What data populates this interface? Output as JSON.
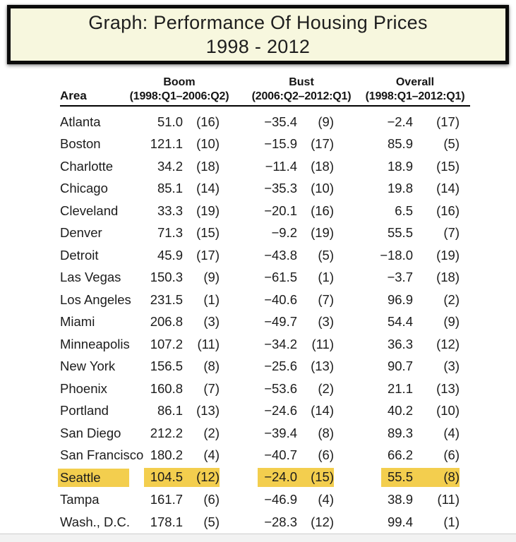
{
  "title": {
    "line1": "Graph: Performance Of Housing Prices",
    "line2": "1998 - 2012"
  },
  "table": {
    "area_header": "Area",
    "groups": [
      {
        "label": "Boom",
        "range": "(1998:Q1–2006:Q2)"
      },
      {
        "label": "Bust",
        "range": "(2006:Q2–2012:Q1)"
      },
      {
        "label": "Overall",
        "range": "(1998:Q1–2012:Q1)"
      }
    ],
    "rows": [
      {
        "area": "Atlanta",
        "boom": "51.0",
        "boom_rank": "(16)",
        "bust": "−35.4",
        "bust_rank": "(9)",
        "overall": "−2.4",
        "overall_rank": "(17)",
        "highlight": false
      },
      {
        "area": "Boston",
        "boom": "121.1",
        "boom_rank": "(10)",
        "bust": "−15.9",
        "bust_rank": "(17)",
        "overall": "85.9",
        "overall_rank": "(5)",
        "highlight": false
      },
      {
        "area": "Charlotte",
        "boom": "34.2",
        "boom_rank": "(18)",
        "bust": "−11.4",
        "bust_rank": "(18)",
        "overall": "18.9",
        "overall_rank": "(15)",
        "highlight": false
      },
      {
        "area": "Chicago",
        "boom": "85.1",
        "boom_rank": "(14)",
        "bust": "−35.3",
        "bust_rank": "(10)",
        "overall": "19.8",
        "overall_rank": "(14)",
        "highlight": false
      },
      {
        "area": "Cleveland",
        "boom": "33.3",
        "boom_rank": "(19)",
        "bust": "−20.1",
        "bust_rank": "(16)",
        "overall": "6.5",
        "overall_rank": "(16)",
        "highlight": false
      },
      {
        "area": "Denver",
        "boom": "71.3",
        "boom_rank": "(15)",
        "bust": "−9.2",
        "bust_rank": "(19)",
        "overall": "55.5",
        "overall_rank": "(7)",
        "highlight": false
      },
      {
        "area": "Detroit",
        "boom": "45.9",
        "boom_rank": "(17)",
        "bust": "−43.8",
        "bust_rank": "(5)",
        "overall": "−18.0",
        "overall_rank": "(19)",
        "highlight": false
      },
      {
        "area": "Las Vegas",
        "boom": "150.3",
        "boom_rank": "(9)",
        "bust": "−61.5",
        "bust_rank": "(1)",
        "overall": "−3.7",
        "overall_rank": "(18)",
        "highlight": false
      },
      {
        "area": "Los Angeles",
        "boom": "231.5",
        "boom_rank": "(1)",
        "bust": "−40.6",
        "bust_rank": "(7)",
        "overall": "96.9",
        "overall_rank": "(2)",
        "highlight": false
      },
      {
        "area": "Miami",
        "boom": "206.8",
        "boom_rank": "(3)",
        "bust": "−49.7",
        "bust_rank": "(3)",
        "overall": "54.4",
        "overall_rank": "(9)",
        "highlight": false
      },
      {
        "area": "Minneapolis",
        "boom": "107.2",
        "boom_rank": "(11)",
        "bust": "−34.2",
        "bust_rank": "(11)",
        "overall": "36.3",
        "overall_rank": "(12)",
        "highlight": false
      },
      {
        "area": "New York",
        "boom": "156.5",
        "boom_rank": "(8)",
        "bust": "−25.6",
        "bust_rank": "(13)",
        "overall": "90.7",
        "overall_rank": "(3)",
        "highlight": false
      },
      {
        "area": "Phoenix",
        "boom": "160.8",
        "boom_rank": "(7)",
        "bust": "−53.6",
        "bust_rank": "(2)",
        "overall": "21.1",
        "overall_rank": "(13)",
        "highlight": false
      },
      {
        "area": "Portland",
        "boom": "86.1",
        "boom_rank": "(13)",
        "bust": "−24.6",
        "bust_rank": "(14)",
        "overall": "40.2",
        "overall_rank": "(10)",
        "highlight": false
      },
      {
        "area": "San Diego",
        "boom": "212.2",
        "boom_rank": "(2)",
        "bust": "−39.4",
        "bust_rank": "(8)",
        "overall": "89.3",
        "overall_rank": "(4)",
        "highlight": false
      },
      {
        "area": "San Francisco",
        "boom": "180.2",
        "boom_rank": "(4)",
        "bust": "−40.7",
        "bust_rank": "(6)",
        "overall": "66.2",
        "overall_rank": "(6)",
        "highlight": false
      },
      {
        "area": "Seattle",
        "boom": "104.5",
        "boom_rank": "(12)",
        "bust": "−24.0",
        "bust_rank": "(15)",
        "overall": "55.5",
        "overall_rank": "(8)",
        "highlight": true
      },
      {
        "area": "Tampa",
        "boom": "161.7",
        "boom_rank": "(6)",
        "bust": "−46.9",
        "bust_rank": "(4)",
        "overall": "38.9",
        "overall_rank": "(11)",
        "highlight": false
      },
      {
        "area": "Wash., D.C.",
        "boom": "178.1",
        "boom_rank": "(5)",
        "bust": "−28.3",
        "bust_rank": "(12)",
        "overall": "99.4",
        "overall_rank": "(1)",
        "highlight": false
      }
    ]
  },
  "colors": {
    "highlight": "#F3CE4E",
    "title_box_bg": "#F7F7DE",
    "title_box_border": "#0B0B0B",
    "text": "#1C1C1C",
    "header_rule": "#000000",
    "bottom_strip_bg": "#F2F2F2",
    "bottom_strip_border": "#CDCDCD"
  },
  "chart_data": {
    "type": "table",
    "title": "Graph: Performance Of Housing Prices 1998 - 2012",
    "columns": [
      "Area",
      "Boom % (1998:Q1–2006:Q2)",
      "Boom rank",
      "Bust % (2006:Q2–2012:Q1)",
      "Bust rank",
      "Overall % (1998:Q1–2012:Q1)",
      "Overall rank"
    ],
    "highlighted_area": "Seattle",
    "rows": [
      [
        "Atlanta",
        51.0,
        16,
        -35.4,
        9,
        -2.4,
        17
      ],
      [
        "Boston",
        121.1,
        10,
        -15.9,
        17,
        85.9,
        5
      ],
      [
        "Charlotte",
        34.2,
        18,
        -11.4,
        18,
        18.9,
        15
      ],
      [
        "Chicago",
        85.1,
        14,
        -35.3,
        10,
        19.8,
        14
      ],
      [
        "Cleveland",
        33.3,
        19,
        -20.1,
        16,
        6.5,
        16
      ],
      [
        "Denver",
        71.3,
        15,
        -9.2,
        19,
        55.5,
        7
      ],
      [
        "Detroit",
        45.9,
        17,
        -43.8,
        5,
        -18.0,
        19
      ],
      [
        "Las Vegas",
        150.3,
        9,
        -61.5,
        1,
        -3.7,
        18
      ],
      [
        "Los Angeles",
        231.5,
        1,
        -40.6,
        7,
        96.9,
        2
      ],
      [
        "Miami",
        206.8,
        3,
        -49.7,
        3,
        54.4,
        9
      ],
      [
        "Minneapolis",
        107.2,
        11,
        -34.2,
        11,
        36.3,
        12
      ],
      [
        "New York",
        156.5,
        8,
        -25.6,
        13,
        90.7,
        3
      ],
      [
        "Phoenix",
        160.8,
        7,
        -53.6,
        2,
        21.1,
        13
      ],
      [
        "Portland",
        86.1,
        13,
        -24.6,
        14,
        40.2,
        10
      ],
      [
        "San Diego",
        212.2,
        2,
        -39.4,
        8,
        89.3,
        4
      ],
      [
        "San Francisco",
        180.2,
        4,
        -40.7,
        6,
        66.2,
        6
      ],
      [
        "Seattle",
        104.5,
        12,
        -24.0,
        15,
        55.5,
        8
      ],
      [
        "Tampa",
        161.7,
        6,
        -46.9,
        4,
        38.9,
        11
      ],
      [
        "Wash., D.C.",
        178.1,
        5,
        -28.3,
        12,
        99.4,
        1
      ]
    ]
  }
}
